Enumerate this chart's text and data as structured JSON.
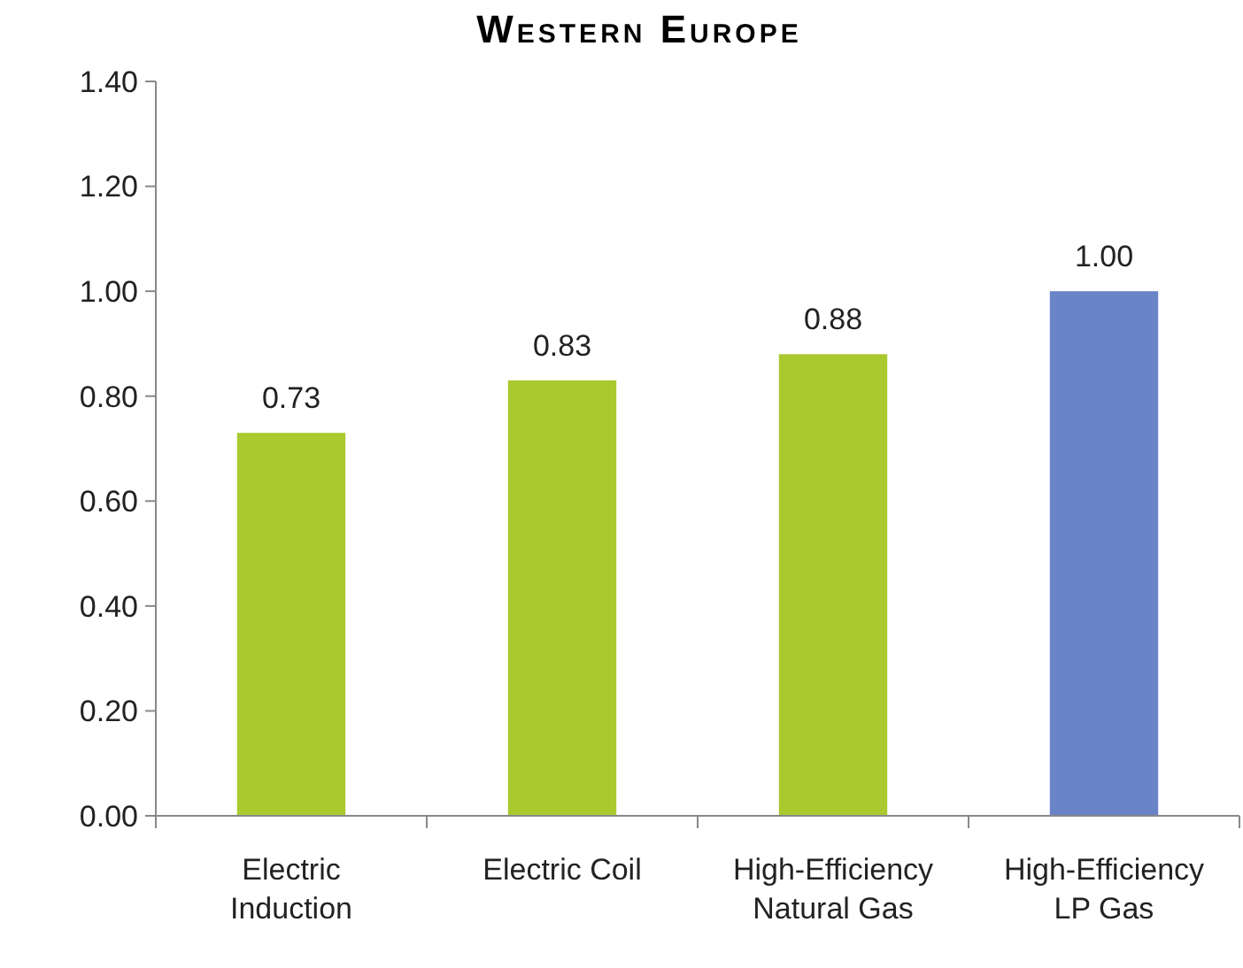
{
  "chart_data": {
    "type": "bar",
    "title": "Western Europe",
    "categories": [
      "Electric\nInduction",
      "Electric Coil",
      "High-Efficiency\nNatural Gas",
      "High-Efficiency\nLP Gas"
    ],
    "values": [
      0.73,
      0.83,
      0.88,
      1.0
    ],
    "colors": [
      "#a9c92f",
      "#a9c92f",
      "#a9c92f",
      "#6a84c8"
    ],
    "ylim": [
      0,
      1.4
    ],
    "yticks": [
      {
        "value": 0,
        "label": "0.00"
      },
      {
        "value": 0.2,
        "label": "0.20"
      },
      {
        "value": 0.4,
        "label": "0.40"
      },
      {
        "value": 0.6,
        "label": "0.60"
      },
      {
        "value": 0.8,
        "label": "0.80"
      },
      {
        "value": 1.0,
        "label": "1.00"
      },
      {
        "value": 1.2,
        "label": "1.20"
      },
      {
        "value": 1.4,
        "label": "1.40"
      }
    ],
    "value_labels": [
      "0.73",
      "0.83",
      "0.88",
      "1.00"
    ],
    "grid": false
  }
}
